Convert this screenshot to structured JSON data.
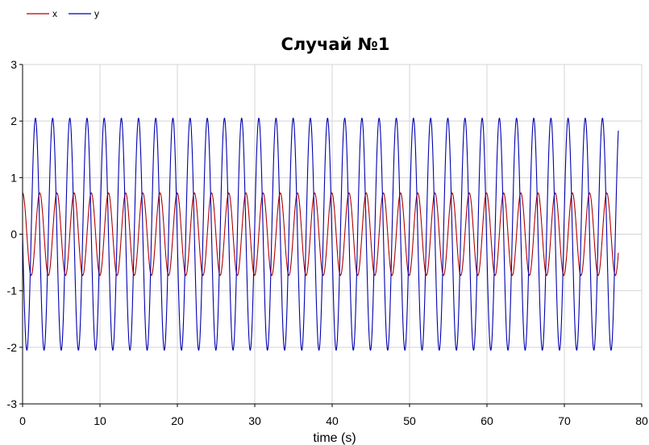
{
  "chart_data": {
    "type": "line",
    "title": "Случай №1",
    "xlabel": "time (s)",
    "ylabel": "",
    "xlim": [
      0,
      80
    ],
    "ylim": [
      -3,
      3
    ],
    "xticks": [
      "0",
      "10",
      "20",
      "30",
      "40",
      "50",
      "60",
      "70",
      "80"
    ],
    "yticks": [
      "3",
      "2",
      "1",
      "0",
      "-1",
      "-2",
      "-3"
    ],
    "grid": true,
    "legend_position": "top-left",
    "x_end": 77,
    "series": [
      {
        "name": "x",
        "color": "#b00000",
        "amplitude": 0.73,
        "period": 2.22,
        "phase_deg": 90
      },
      {
        "name": "y",
        "color": "#0000b0",
        "amplitude": 2.05,
        "period": 2.22,
        "phase_deg": 180
      }
    ]
  }
}
